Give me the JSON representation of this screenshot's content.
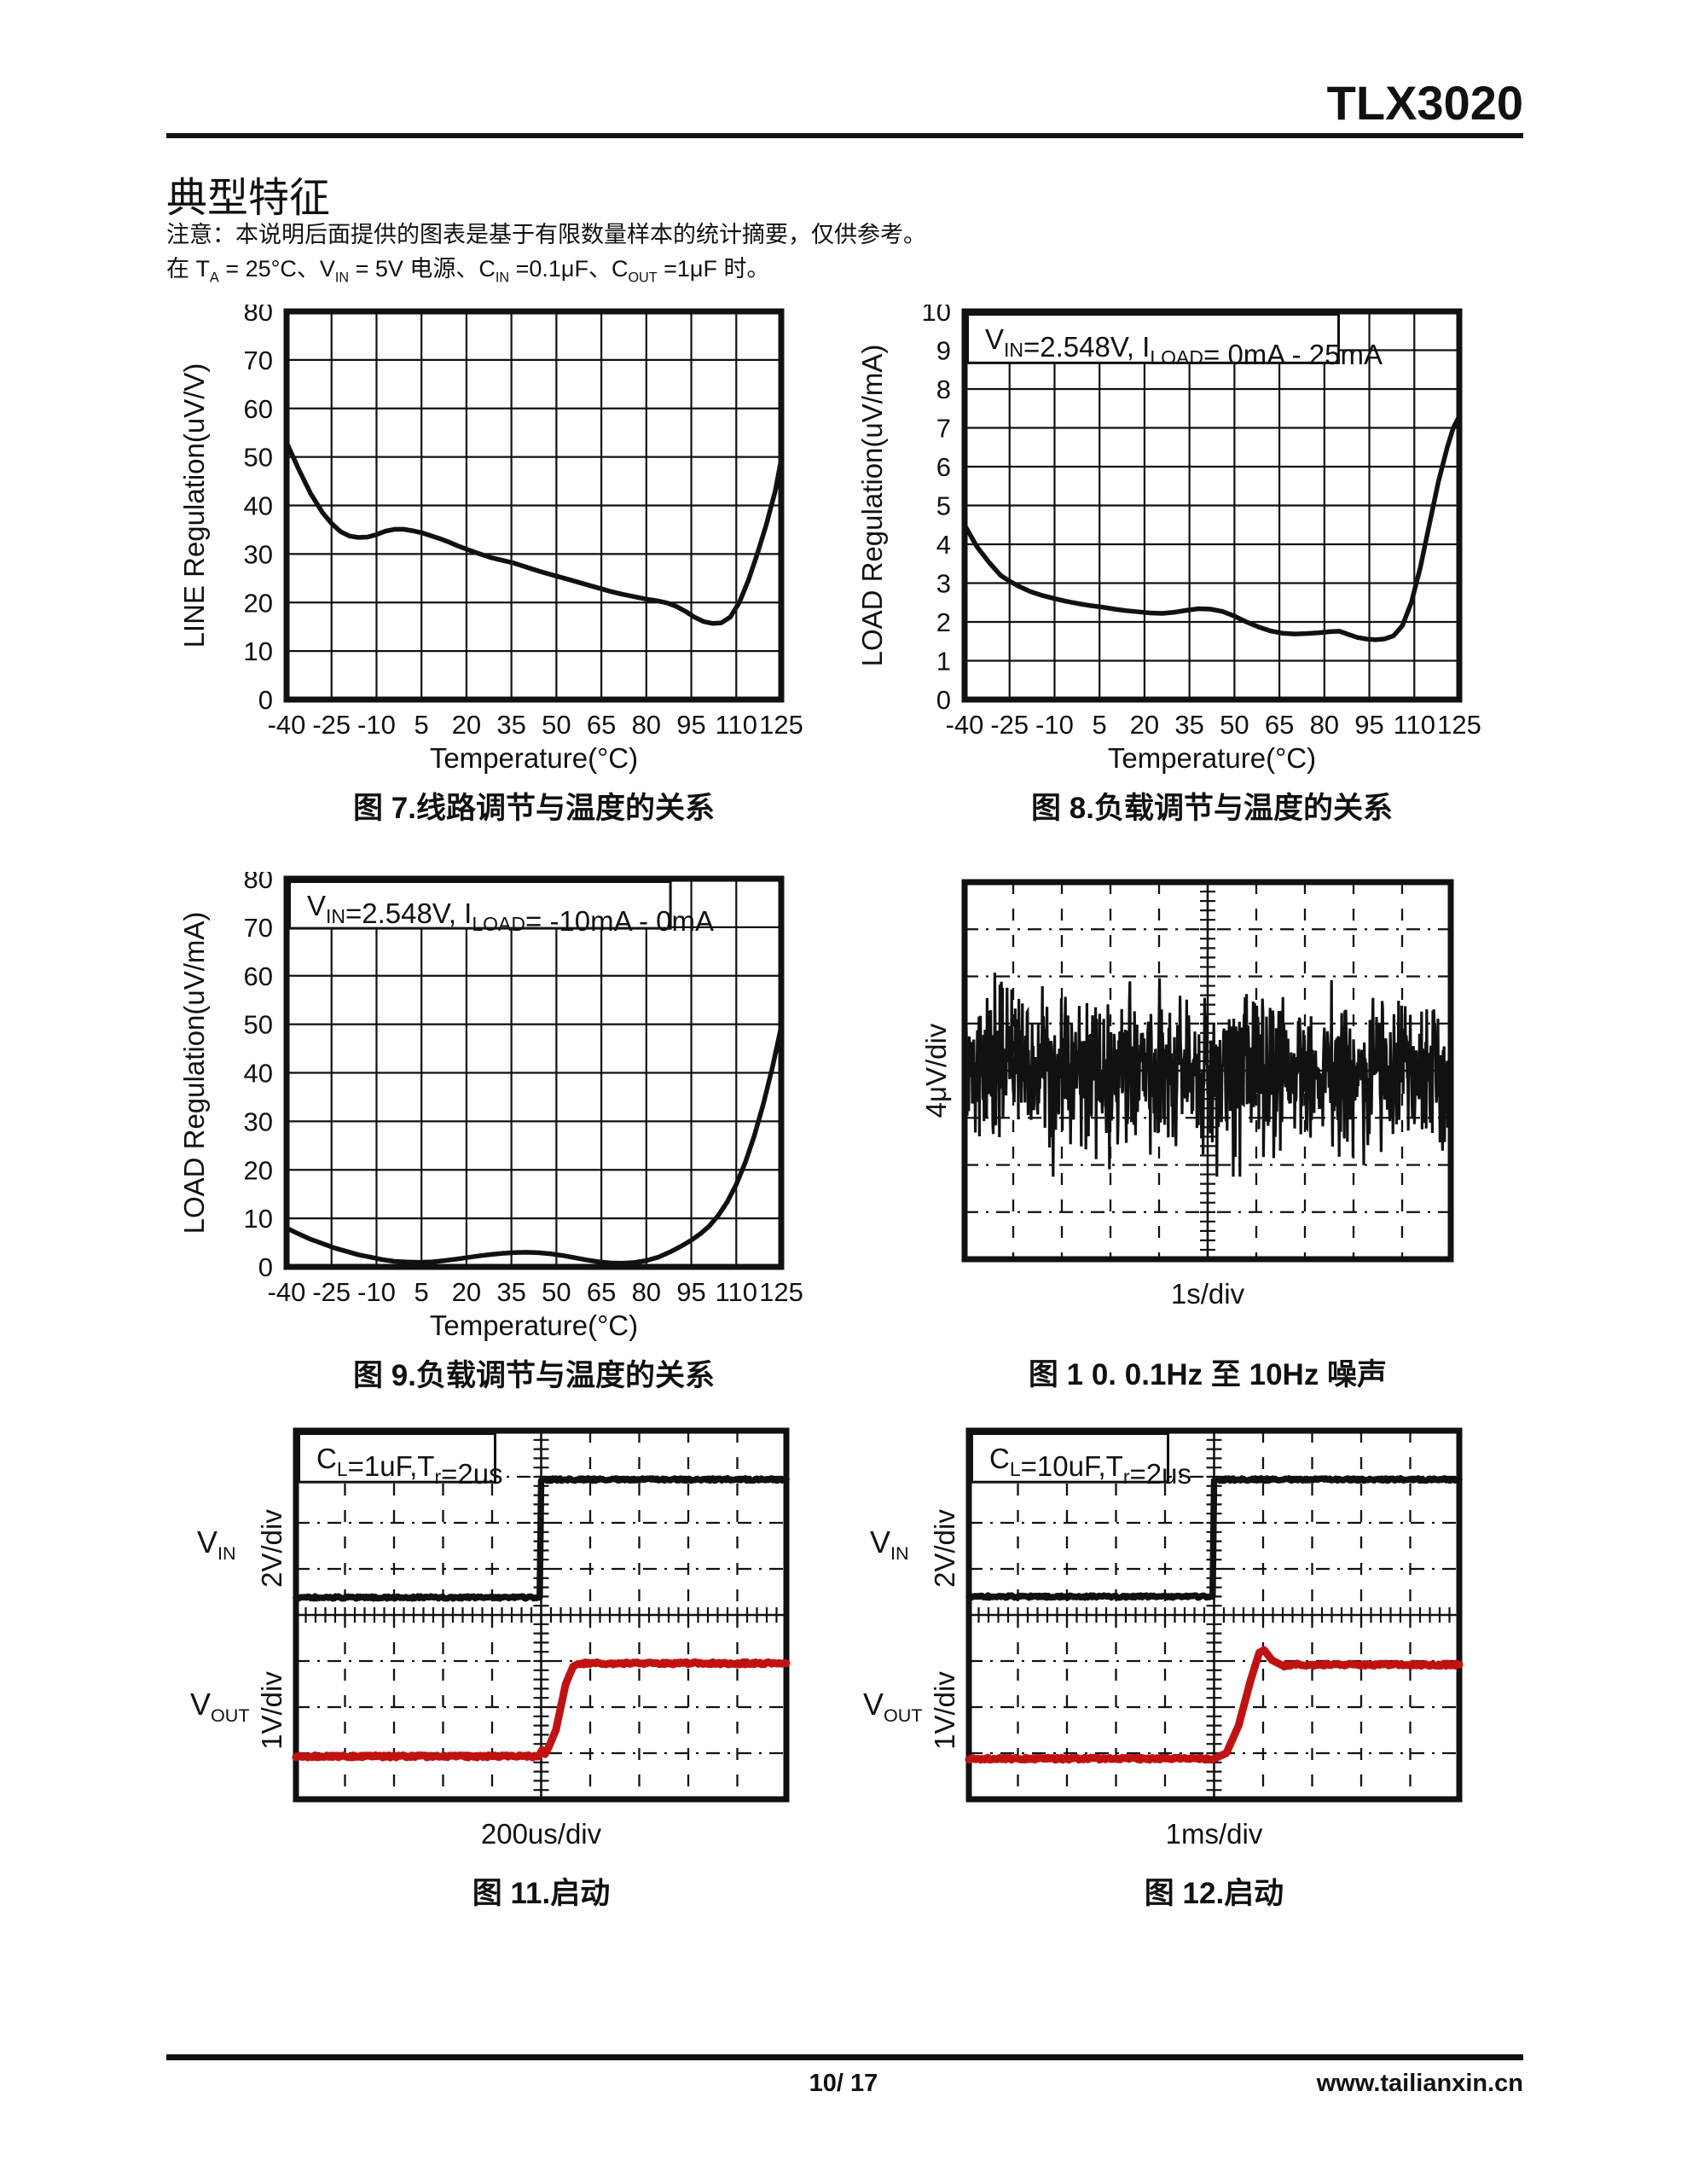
{
  "header": {
    "brand": "TLX3020",
    "section_title": "典型特征",
    "note_line1": "注意：本说明后面提供的图表是基于有限数量样本的统计摘要，仅供参考。",
    "note_line2_segments": [
      {
        "t": "在 T"
      },
      {
        "t": "A",
        "sub": true
      },
      {
        "t": " = 25°C、V"
      },
      {
        "t": "IN",
        "sub": true
      },
      {
        "t": " = 5V 电源、C"
      },
      {
        "t": "IN",
        "sub": true
      },
      {
        "t": " =0.1μF、C"
      },
      {
        "t": "OUT",
        "sub": true
      },
      {
        "t": " =1μF 时。"
      }
    ]
  },
  "footer": {
    "page": "10/ 17",
    "site": "www.tailianxin.cn"
  },
  "colors": {
    "ink": "#111111",
    "trace_red": "#c11212",
    "paper": "#ffffff"
  },
  "chart_data": [
    {
      "id": "fig7",
      "type": "line",
      "caption": "图 7.线路调节与温度的关系",
      "xlabel": "Temperature(°C)",
      "ylabel": "LINE Regulation(uV/V)",
      "xlim": [
        -40,
        125
      ],
      "ylim": [
        0,
        80
      ],
      "ytick_step": 10,
      "xticks": [
        -40,
        -25,
        -10,
        5,
        20,
        35,
        50,
        65,
        80,
        95,
        110,
        125
      ],
      "grid": true,
      "legend": "none",
      "series": [
        {
          "name": "line-regulation-vs-temp",
          "points": [
            [
              -40,
              53
            ],
            [
              -36,
              47.5
            ],
            [
              -32,
              42.5
            ],
            [
              -28,
              38.5
            ],
            [
              -25,
              36.3
            ],
            [
              -22,
              34.6
            ],
            [
              -19,
              33.7
            ],
            [
              -16,
              33.4
            ],
            [
              -13,
              33.5
            ],
            [
              -10,
              34
            ],
            [
              -7,
              34.7
            ],
            [
              -4,
              35.1
            ],
            [
              -1,
              35.1
            ],
            [
              2,
              34.8
            ],
            [
              5,
              34.4
            ],
            [
              8,
              33.8
            ],
            [
              11,
              33.2
            ],
            [
              14,
              32.5
            ],
            [
              17,
              31.7
            ],
            [
              20,
              31
            ],
            [
              24,
              30.1
            ],
            [
              28,
              29.3
            ],
            [
              32,
              28.7
            ],
            [
              36,
              28.1
            ],
            [
              40,
              27.3
            ],
            [
              44,
              26.5
            ],
            [
              48,
              25.8
            ],
            [
              52,
              25.1
            ],
            [
              56,
              24.4
            ],
            [
              60,
              23.7
            ],
            [
              64,
              23
            ],
            [
              68,
              22.3
            ],
            [
              72,
              21.7
            ],
            [
              76,
              21.2
            ],
            [
              80,
              20.7
            ],
            [
              84,
              20.3
            ],
            [
              87,
              19.9
            ],
            [
              90,
              19.2
            ],
            [
              93,
              18.2
            ],
            [
              96,
              17
            ],
            [
              99,
              16.1
            ],
            [
              102,
              15.7
            ],
            [
              105,
              15.8
            ],
            [
              108,
              17
            ],
            [
              111,
              20
            ],
            [
              114,
              24.5
            ],
            [
              117,
              30
            ],
            [
              120,
              36
            ],
            [
              123,
              43
            ],
            [
              125,
              49.5
            ]
          ]
        }
      ]
    },
    {
      "id": "fig8",
      "type": "line",
      "caption": "图 8.负载调节与温度的关系",
      "xlabel": "Temperature(°C)",
      "ylabel": "LOAD Regulation(uV/mA)",
      "xlim": [
        -40,
        125
      ],
      "ylim": [
        0,
        10
      ],
      "ytick_step": 1,
      "xticks": [
        -40,
        -25,
        -10,
        5,
        20,
        35,
        50,
        65,
        80,
        95,
        110,
        125
      ],
      "grid": true,
      "legend": "none",
      "annotation": {
        "w_frac": 0.75,
        "h_frac": 0.125,
        "segments": [
          {
            "t": "V"
          },
          {
            "t": "IN",
            "sub": true
          },
          {
            "t": "=2.548V, I"
          },
          {
            "t": "LOAD",
            "sub": true
          },
          {
            "t": "= 0mA - 25mA"
          }
        ]
      },
      "series": [
        {
          "name": "load-regulation-0-25mA",
          "points": [
            [
              -40,
              4.5
            ],
            [
              -36,
              3.95
            ],
            [
              -32,
              3.55
            ],
            [
              -28,
              3.2
            ],
            [
              -25,
              3.05
            ],
            [
              -22,
              2.92
            ],
            [
              -18,
              2.78
            ],
            [
              -14,
              2.68
            ],
            [
              -10,
              2.6
            ],
            [
              -6,
              2.53
            ],
            [
              -2,
              2.47
            ],
            [
              2,
              2.42
            ],
            [
              6,
              2.38
            ],
            [
              10,
              2.33
            ],
            [
              14,
              2.29
            ],
            [
              18,
              2.26
            ],
            [
              22,
              2.23
            ],
            [
              26,
              2.22
            ],
            [
              30,
              2.25
            ],
            [
              34,
              2.3
            ],
            [
              38,
              2.34
            ],
            [
              42,
              2.33
            ],
            [
              46,
              2.27
            ],
            [
              50,
              2.15
            ],
            [
              54,
              2.0
            ],
            [
              58,
              1.87
            ],
            [
              62,
              1.77
            ],
            [
              66,
              1.71
            ],
            [
              70,
              1.69
            ],
            [
              74,
              1.7
            ],
            [
              78,
              1.72
            ],
            [
              82,
              1.75
            ],
            [
              85,
              1.76
            ],
            [
              88,
              1.68
            ],
            [
              91,
              1.6
            ],
            [
              94,
              1.56
            ],
            [
              97,
              1.54
            ],
            [
              100,
              1.56
            ],
            [
              103,
              1.64
            ],
            [
              106,
              1.9
            ],
            [
              109,
              2.5
            ],
            [
              112,
              3.4
            ],
            [
              115,
              4.5
            ],
            [
              118,
              5.6
            ],
            [
              121,
              6.5
            ],
            [
              123,
              7.0
            ],
            [
              125,
              7.3
            ]
          ]
        }
      ]
    },
    {
      "id": "fig9",
      "type": "line",
      "caption": "图 9.负载调节与温度的关系",
      "xlabel": "Temperature(°C)",
      "ylabel": "LOAD Regulation(uV/mA)",
      "xlim": [
        -40,
        125
      ],
      "ylim": [
        0,
        80
      ],
      "ytick_step": 10,
      "xticks": [
        -40,
        -25,
        -10,
        5,
        20,
        35,
        50,
        65,
        80,
        95,
        110,
        125
      ],
      "grid": true,
      "legend": "none",
      "annotation": {
        "w_frac": 0.77,
        "h_frac": 0.12,
        "segments": [
          {
            "t": "V"
          },
          {
            "t": "IN",
            "sub": true
          },
          {
            "t": "=2.548V, I"
          },
          {
            "t": "LOAD",
            "sub": true
          },
          {
            "t": "= -10mA - 0mA"
          }
        ]
      },
      "series": [
        {
          "name": "load-regulation-neg10-0mA",
          "points": [
            [
              -40,
              8
            ],
            [
              -36,
              6.8
            ],
            [
              -32,
              5.7
            ],
            [
              -28,
              4.8
            ],
            [
              -24,
              3.9
            ],
            [
              -20,
              3.2
            ],
            [
              -16,
              2.5
            ],
            [
              -12,
              2.0
            ],
            [
              -8,
              1.5
            ],
            [
              -4,
              1.15
            ],
            [
              0,
              1.0
            ],
            [
              4,
              0.95
            ],
            [
              8,
              1.0
            ],
            [
              12,
              1.25
            ],
            [
              16,
              1.55
            ],
            [
              20,
              1.9
            ],
            [
              24,
              2.25
            ],
            [
              28,
              2.55
            ],
            [
              32,
              2.8
            ],
            [
              36,
              2.95
            ],
            [
              40,
              3.0
            ],
            [
              44,
              2.92
            ],
            [
              48,
              2.7
            ],
            [
              52,
              2.35
            ],
            [
              56,
              1.9
            ],
            [
              60,
              1.45
            ],
            [
              64,
              1.05
            ],
            [
              68,
              0.8
            ],
            [
              72,
              0.75
            ],
            [
              76,
              0.9
            ],
            [
              80,
              1.3
            ],
            [
              84,
              2.0
            ],
            [
              88,
              3.1
            ],
            [
              92,
              4.4
            ],
            [
              95,
              5.5
            ],
            [
              98,
              6.8
            ],
            [
              101,
              8.4
            ],
            [
              104,
              10.6
            ],
            [
              107,
              13.4
            ],
            [
              110,
              17
            ],
            [
              113,
              21.5
            ],
            [
              116,
              27
            ],
            [
              119,
              33.5
            ],
            [
              122,
              41
            ],
            [
              125,
              49.5
            ]
          ]
        }
      ]
    },
    {
      "id": "fig10",
      "type": "scope-noise",
      "caption": "图 1 0. 0.1Hz 至 10Hz 噪声",
      "xlabel": "1s/div",
      "ylabel": "4μV/div",
      "divisions": {
        "cols": 10,
        "rows": 8
      },
      "center_ticks": "v",
      "noise": {
        "seed": 11,
        "samples": 950,
        "mean_div": 4.0,
        "sigma_div": 0.62,
        "clamp_div": 2.25,
        "burst_x0": 5.05,
        "burst_x1": 6.05,
        "burst_gain": 1.45
      }
    },
    {
      "id": "fig11",
      "type": "scope-step",
      "caption": "图 11.启动",
      "xlabel": "200us/div",
      "divisions": {
        "cols": 10,
        "rows": 8
      },
      "center_ticks": "both",
      "annotation": {
        "w_frac": 0.4,
        "h_div": 1.05,
        "segments": [
          {
            "t": "C"
          },
          {
            "t": "L",
            "sub": true
          },
          {
            "t": "=1uF,T"
          },
          {
            "t": "r",
            "sub": true
          },
          {
            "t": "=2us"
          }
        ]
      },
      "channels": [
        {
          "name": "vin",
          "label_segments": [
            {
              "t": "V"
            },
            {
              "t": "IN",
              "sub": true
            }
          ],
          "scale_label": "2V/div",
          "color": "ink",
          "width": 7.5,
          "points": [
            [
              0,
              3.62
            ],
            [
              4.97,
              3.62
            ],
            [
              5.0,
              1.06
            ],
            [
              10,
              1.06
            ]
          ]
        },
        {
          "name": "vout",
          "label_segments": [
            {
              "t": "V"
            },
            {
              "t": "OUT",
              "sub": true
            }
          ],
          "scale_label": "1V/div",
          "color": "red",
          "width": 9,
          "points": [
            [
              0,
              7.07
            ],
            [
              4.95,
              7.07
            ],
            [
              5.02,
              6.93
            ],
            [
              5.08,
              7.02
            ],
            [
              5.15,
              6.88
            ],
            [
              5.3,
              6.5
            ],
            [
              5.5,
              5.5
            ],
            [
              5.65,
              5.12
            ],
            [
              5.78,
              5.05
            ],
            [
              10,
              5.05
            ]
          ]
        }
      ]
    },
    {
      "id": "fig12",
      "type": "scope-step",
      "caption": "图 12.启动",
      "xlabel": "1ms/div",
      "divisions": {
        "cols": 10,
        "rows": 8
      },
      "center_ticks": "both",
      "annotation": {
        "w_frac": 0.4,
        "h_div": 1.05,
        "segments": [
          {
            "t": "C"
          },
          {
            "t": "L",
            "sub": true
          },
          {
            "t": "=10uF,T"
          },
          {
            "t": "r",
            "sub": true
          },
          {
            "t": "=2us"
          }
        ]
      },
      "channels": [
        {
          "name": "vin",
          "label_segments": [
            {
              "t": "V"
            },
            {
              "t": "IN",
              "sub": true
            }
          ],
          "scale_label": "2V/div",
          "color": "ink",
          "width": 7.5,
          "points": [
            [
              0,
              3.6
            ],
            [
              4.97,
              3.6
            ],
            [
              5.0,
              1.06
            ],
            [
              10,
              1.06
            ]
          ]
        },
        {
          "name": "vout",
          "label_segments": [
            {
              "t": "V"
            },
            {
              "t": "OUT",
              "sub": true
            }
          ],
          "scale_label": "1V/div",
          "color": "red",
          "width": 9,
          "points": [
            [
              0,
              7.12
            ],
            [
              5.0,
              7.12
            ],
            [
              5.25,
              7.0
            ],
            [
              5.5,
              6.4
            ],
            [
              5.75,
              5.4
            ],
            [
              5.92,
              4.82
            ],
            [
              6.02,
              4.76
            ],
            [
              6.18,
              4.98
            ],
            [
              6.4,
              5.1
            ],
            [
              6.7,
              5.08
            ],
            [
              10,
              5.08
            ]
          ]
        }
      ]
    }
  ]
}
